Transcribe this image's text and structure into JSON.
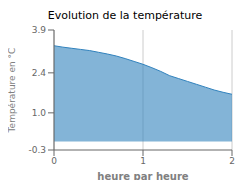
{
  "chart_data": {
    "type": "area",
    "title": "Evolution de la température",
    "xlabel": "heure par heure",
    "ylabel": "Température en °C",
    "x": [
      0,
      0.1,
      0.2,
      0.3,
      0.4,
      0.5,
      0.6,
      0.7,
      0.8,
      0.9,
      1.0,
      1.1,
      1.2,
      1.3,
      1.4,
      1.5,
      1.6,
      1.7,
      1.8,
      1.9,
      2.0
    ],
    "values": [
      3.35,
      3.3,
      3.26,
      3.22,
      3.18,
      3.12,
      3.06,
      2.99,
      2.9,
      2.8,
      2.7,
      2.58,
      2.45,
      2.3,
      2.2,
      2.1,
      2.0,
      1.9,
      1.8,
      1.72,
      1.65
    ],
    "xlim": [
      0,
      2
    ],
    "ylim": [
      -0.3,
      3.9
    ],
    "xticks": [
      0,
      1,
      2
    ],
    "yticks": [
      -0.3,
      {
        "value": 1.0,
        "label": "1.0"
      },
      2.4,
      3.9
    ],
    "grid": "x"
  }
}
